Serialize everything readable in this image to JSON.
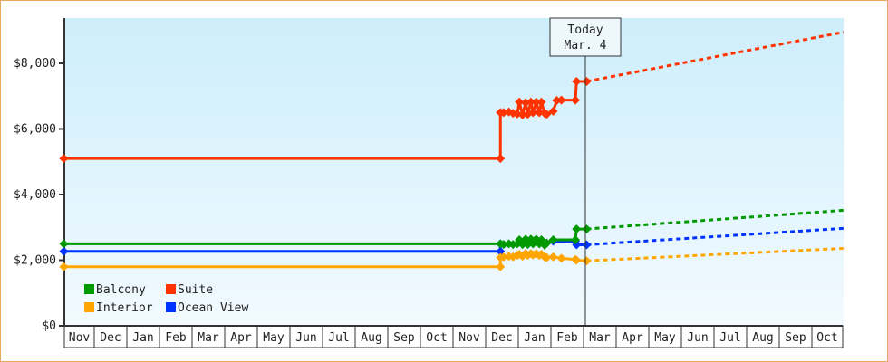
{
  "chart_data": {
    "type": "line",
    "title": "",
    "xlabel": "",
    "ylabel": "",
    "ylim": [
      0,
      9500
    ],
    "y_ticks": [
      "$0",
      "$2,000",
      "$4,000",
      "$6,000",
      "$8,000"
    ],
    "y_tick_values": [
      0,
      2000,
      4000,
      6000,
      8000
    ],
    "x_range": [
      "2012-11-03",
      "2014-10-31"
    ],
    "x_tick_labels": [
      "Nov",
      "Dec",
      "Jan",
      "Feb",
      "Mar",
      "Apr",
      "May",
      "Jun",
      "Jul",
      "Aug",
      "Sep",
      "Oct",
      "Nov",
      "Dec",
      "Jan",
      "Feb",
      "Mar",
      "Apr",
      "May",
      "Jun",
      "Jul",
      "Aug",
      "Sep",
      "Oct"
    ],
    "grid": false,
    "legend_placement": "bottom-left",
    "today_marker": {
      "line1": "Today",
      "line2": "Mar. 4",
      "date": "2014-03-04"
    },
    "background_gradient": [
      "#cdeefb",
      "#f2faff"
    ],
    "series": [
      {
        "name": "Balcony",
        "color": "#009900",
        "points": [
          [
            "2012-11-03",
            2500
          ],
          [
            "2013-12-15",
            2500
          ],
          [
            "2013-12-18",
            2480
          ],
          [
            "2013-12-23",
            2500
          ],
          [
            "2013-12-27",
            2480
          ],
          [
            "2013-12-31",
            2500
          ],
          [
            "2014-01-02",
            2620
          ],
          [
            "2014-01-05",
            2480
          ],
          [
            "2014-01-08",
            2640
          ],
          [
            "2014-01-10",
            2480
          ],
          [
            "2014-01-13",
            2640
          ],
          [
            "2014-01-15",
            2500
          ],
          [
            "2014-01-18",
            2640
          ],
          [
            "2014-01-21",
            2500
          ],
          [
            "2014-01-23",
            2620
          ],
          [
            "2014-01-26",
            2460
          ],
          [
            "2014-01-28",
            2520
          ],
          [
            "2014-02-03",
            2620
          ],
          [
            "2014-02-22",
            2620
          ],
          [
            "2014-02-23",
            2950
          ],
          [
            "2014-03-04",
            2950
          ]
        ],
        "projection": [
          [
            "2014-03-04",
            2950
          ],
          [
            "2014-10-31",
            3520
          ]
        ]
      },
      {
        "name": "Suite",
        "color": "#ff3300",
        "points": [
          [
            "2012-11-03",
            5100
          ],
          [
            "2013-12-15",
            5100
          ],
          [
            "2013-12-15",
            6500
          ],
          [
            "2013-12-18",
            6500
          ],
          [
            "2013-12-23",
            6520
          ],
          [
            "2013-12-27",
            6480
          ],
          [
            "2013-12-31",
            6460
          ],
          [
            "2014-01-02",
            6820
          ],
          [
            "2014-01-05",
            6430
          ],
          [
            "2014-01-08",
            6800
          ],
          [
            "2014-01-10",
            6450
          ],
          [
            "2014-01-13",
            6820
          ],
          [
            "2014-01-15",
            6500
          ],
          [
            "2014-01-18",
            6820
          ],
          [
            "2014-01-21",
            6500
          ],
          [
            "2014-01-23",
            6820
          ],
          [
            "2014-01-26",
            6480
          ],
          [
            "2014-01-28",
            6450
          ],
          [
            "2014-02-03",
            6540
          ],
          [
            "2014-02-06",
            6870
          ],
          [
            "2014-02-10",
            6880
          ],
          [
            "2014-02-22",
            6880
          ],
          [
            "2014-02-23",
            7450
          ],
          [
            "2014-03-04",
            7450
          ]
        ],
        "projection": [
          [
            "2014-03-04",
            7450
          ],
          [
            "2014-10-31",
            8950
          ]
        ]
      },
      {
        "name": "Interior",
        "color": "#ffa500",
        "points": [
          [
            "2012-11-03",
            1800
          ],
          [
            "2013-12-15",
            1800
          ],
          [
            "2013-12-15",
            2080
          ],
          [
            "2013-12-18",
            2100
          ],
          [
            "2013-12-23",
            2120
          ],
          [
            "2013-12-27",
            2100
          ],
          [
            "2013-12-31",
            2150
          ],
          [
            "2014-01-02",
            2180
          ],
          [
            "2014-01-05",
            2120
          ],
          [
            "2014-01-08",
            2200
          ],
          [
            "2014-01-10",
            2150
          ],
          [
            "2014-01-13",
            2200
          ],
          [
            "2014-01-15",
            2160
          ],
          [
            "2014-01-18",
            2200
          ],
          [
            "2014-01-21",
            2150
          ],
          [
            "2014-01-23",
            2180
          ],
          [
            "2014-01-26",
            2100
          ],
          [
            "2014-01-28",
            2080
          ],
          [
            "2014-02-03",
            2100
          ],
          [
            "2014-02-10",
            2060
          ],
          [
            "2014-02-22",
            2020
          ],
          [
            "2014-02-23",
            2000
          ],
          [
            "2014-03-04",
            1980
          ]
        ],
        "projection": [
          [
            "2014-03-04",
            1980
          ],
          [
            "2014-10-31",
            2360
          ]
        ]
      },
      {
        "name": "Ocean View",
        "color": "#0033ff",
        "points": [
          [
            "2012-11-03",
            2270
          ],
          [
            "2013-12-15",
            2270
          ],
          [
            "2013-12-15",
            2500
          ],
          [
            "2014-01-28",
            2520
          ],
          [
            "2014-02-03",
            2580
          ],
          [
            "2014-02-22",
            2580
          ],
          [
            "2014-02-23",
            2470
          ],
          [
            "2014-03-04",
            2470
          ]
        ],
        "projection": [
          [
            "2014-03-04",
            2470
          ],
          [
            "2014-10-31",
            2970
          ]
        ]
      }
    ]
  }
}
